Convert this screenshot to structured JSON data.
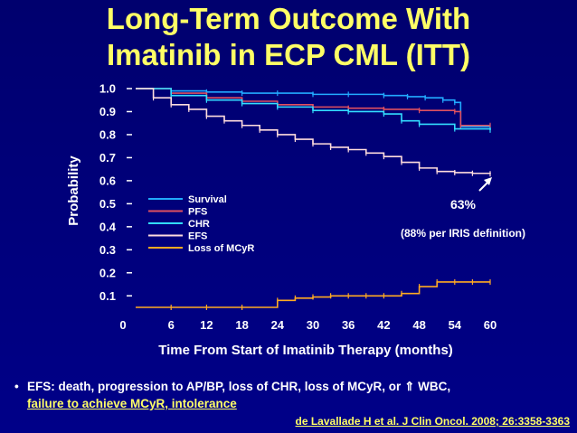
{
  "slide": {
    "title_line1": "Long-Term Outcome With",
    "title_line2": "Imatinib in ECP CML (ITT)",
    "footnote_prefix": "EFS: death, progression to AP/BP, loss of CHR, loss of MCyR, or",
    "footnote_arrow": "⇑",
    "footnote_suffix": "WBC,",
    "footnote_line2": "failure to achieve MCyR, intolerance",
    "reference": "de Lavallade H et al. J Clin Oncol. 2008; 26:3358-3363"
  },
  "colors": {
    "background": "#000080",
    "title": "#ffff66",
    "Survival": "#22aaff",
    "PFS": "#e05060",
    "CHR": "#33ddff",
    "EFS": "#ffdddd",
    "Loss of MCyR": "#ffaa22"
  },
  "chart_data": {
    "type": "line",
    "xlabel": "Time From Start of Imatinib Therapy (months)",
    "ylabel": "Probability",
    "xlim": [
      0,
      60
    ],
    "ylim": [
      0.05,
      1.0
    ],
    "xticks": [
      "0",
      "6",
      "12",
      "18",
      "24",
      "30",
      "36",
      "42",
      "48",
      "54",
      "60"
    ],
    "yticks": [
      "0.1",
      "0.2",
      "0.3",
      "0.4",
      "0.5",
      "0.6",
      "0.7",
      "0.8",
      "0.9",
      "1.0"
    ],
    "legend_position": "center-left",
    "series": [
      {
        "name": "Survival",
        "x": [
          0,
          6,
          12,
          18,
          24,
          30,
          36,
          42,
          46,
          49,
          52,
          54,
          55,
          60
        ],
        "y": [
          1.0,
          0.99,
          0.985,
          0.98,
          0.98,
          0.975,
          0.975,
          0.97,
          0.965,
          0.96,
          0.95,
          0.94,
          0.835,
          0.835
        ]
      },
      {
        "name": "PFS",
        "x": [
          0,
          6,
          12,
          18,
          24,
          30,
          36,
          42,
          48,
          54,
          55,
          60
        ],
        "y": [
          1.0,
          0.98,
          0.96,
          0.945,
          0.93,
          0.92,
          0.915,
          0.91,
          0.905,
          0.9,
          0.84,
          0.84
        ]
      },
      {
        "name": "CHR",
        "x": [
          0,
          6,
          12,
          18,
          24,
          30,
          36,
          42,
          45,
          48,
          54,
          60
        ],
        "y": [
          1.0,
          0.97,
          0.95,
          0.935,
          0.92,
          0.905,
          0.9,
          0.89,
          0.86,
          0.845,
          0.825,
          0.82
        ]
      },
      {
        "name": "EFS",
        "x": [
          0,
          3,
          6,
          9,
          12,
          15,
          18,
          21,
          24,
          27,
          30,
          33,
          36,
          39,
          42,
          45,
          48,
          51,
          54,
          57,
          60
        ],
        "y": [
          1.0,
          0.96,
          0.93,
          0.91,
          0.88,
          0.86,
          0.84,
          0.82,
          0.8,
          0.78,
          0.76,
          0.745,
          0.735,
          0.72,
          0.705,
          0.68,
          0.655,
          0.64,
          0.635,
          0.632,
          0.63
        ]
      },
      {
        "name": "Loss of MCyR",
        "x": [
          0,
          6,
          12,
          18,
          24,
          27,
          30,
          33,
          36,
          39,
          42,
          45,
          48,
          51,
          54,
          57,
          60
        ],
        "y": [
          0.0,
          0.01,
          0.03,
          0.05,
          0.08,
          0.09,
          0.095,
          0.1,
          0.1,
          0.1,
          0.1,
          0.11,
          0.14,
          0.16,
          0.16,
          0.16,
          0.16
        ]
      }
    ],
    "annotations": [
      {
        "text": "63%"
      },
      {
        "text": "(88% per IRIS definition)"
      }
    ]
  }
}
